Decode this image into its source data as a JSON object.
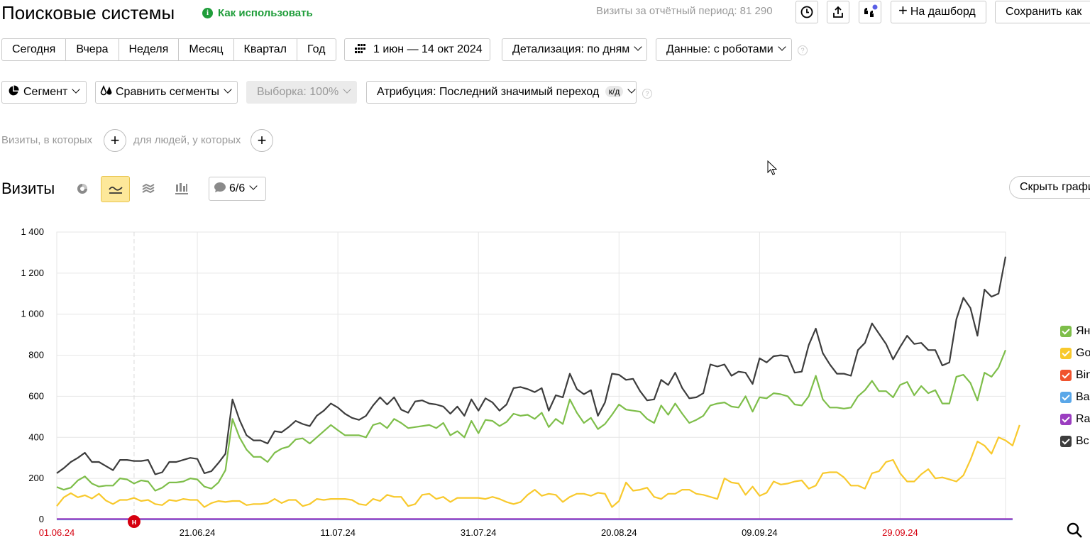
{
  "header": {
    "title": "Поисковые системы",
    "help_link": "Как использовать",
    "period_visits": "Визиты за отчётный период: 81 290",
    "dashboard_label": "На дашборд",
    "save_label": "Сохранить как"
  },
  "toolbar": {
    "periods": [
      "Сегодня",
      "Вчера",
      "Неделя",
      "Месяц",
      "Квартал",
      "Год"
    ],
    "date_range": "1 июн — 14 окт 2024",
    "detail": "Детализация: по дням",
    "data_mode": "Данные: с роботами"
  },
  "segments": {
    "segment_label": "Сегмент",
    "compare_label": "Сравнить сегменты",
    "sample_label": "Выборка: 100%",
    "attribution_label": "Атрибуция: Последний значимый переход",
    "attribution_badge": "к/д"
  },
  "filters": {
    "visits_label": "Визиты, в которых",
    "people_label": "для людей, у которых"
  },
  "chart_section": {
    "title": "Визиты",
    "series_selector": "6/6",
    "hide_label": "Скрыть графи"
  },
  "colors": {
    "yandex": "#7ebe4a",
    "google": "#f8c92d",
    "bing": "#f0532e",
    "baidu": "#5aa7e8",
    "rambler": "#9b3ec0",
    "total": "#3d3d3d",
    "accent_green": "#1f9d3a",
    "holiday_red": "#d6000f",
    "active_chart_btn": "#fde89a"
  },
  "chart_data": {
    "type": "line",
    "y_ticks": [
      "0",
      "200",
      "400",
      "600",
      "800",
      "1 000",
      "1 200",
      "1 400"
    ],
    "x_ticks": [
      "01.06.24",
      "21.06.24",
      "11.07.24",
      "31.07.24",
      "20.08.24",
      "09.09.24",
      "29.09.24"
    ],
    "x_tick_holiday": [
      true,
      false,
      false,
      false,
      false,
      false,
      true
    ],
    "ylim": [
      0,
      1400
    ],
    "x_start": "2024-06-01",
    "x_end": "2024-10-14",
    "annotation": {
      "date": "2024-06-12",
      "label": "н"
    },
    "grid": true,
    "legend_position": "right",
    "series": [
      {
        "name": "Ян",
        "color_key": "yandex",
        "values": [
          158,
          145,
          155,
          190,
          210,
          175,
          160,
          165,
          165,
          200,
          195,
          175,
          190,
          185,
          140,
          155,
          180,
          180,
          185,
          200,
          195,
          160,
          150,
          180,
          240,
          490,
          400,
          340,
          305,
          305,
          280,
          325,
          345,
          355,
          390,
          395,
          370,
          400,
          430,
          460,
          435,
          410,
          410,
          410,
          400,
          460,
          470,
          445,
          490,
          470,
          445,
          450,
          455,
          460,
          445,
          470,
          410,
          430,
          400,
          480,
          420,
          485,
          480,
          455,
          475,
          515,
          505,
          510,
          490,
          520,
          450,
          490,
          465,
          585,
          520,
          470,
          495,
          440,
          465,
          510,
          560,
          535,
          530,
          525,
          490,
          470,
          555,
          510,
          565,
          515,
          470,
          485,
          505,
          555,
          565,
          570,
          550,
          545,
          600,
          525,
          595,
          590,
          615,
          610,
          600,
          560,
          555,
          600,
          700,
          585,
          545,
          545,
          540,
          545,
          600,
          630,
          675,
          625,
          625,
          595,
          655,
          670,
          605,
          650,
          615,
          630,
          565,
          565,
          695,
          705,
          665,
          580,
          715,
          695,
          740,
          825
        ]
      },
      {
        "name": "Go",
        "color_key": "google",
        "values": [
          65,
          108,
          128,
          108,
          118,
          102,
          125,
          92,
          75,
          95,
          95,
          105,
          90,
          95,
          75,
          70,
          95,
          90,
          100,
          95,
          95,
          60,
          80,
          90,
          85,
          90,
          90,
          70,
          75,
          75,
          80,
          100,
          80,
          95,
          95,
          65,
          75,
          100,
          95,
          100,
          100,
          100,
          95,
          75,
          70,
          100,
          90,
          120,
          110,
          110,
          65,
          75,
          120,
          125,
          100,
          110,
          85,
          105,
          105,
          105,
          105,
          100,
          110,
          100,
          85,
          75,
          85,
          120,
          145,
          115,
          125,
          120,
          85,
          110,
          125,
          125,
          115,
          130,
          125,
          60,
          90,
          180,
          140,
          145,
          155,
          110,
          100,
          125,
          125,
          145,
          145,
          125,
          120,
          110,
          100,
          200,
          180,
          175,
          120,
          160,
          115,
          130,
          185,
          170,
          175,
          185,
          190,
          150,
          165,
          225,
          230,
          230,
          205,
          165,
          165,
          150,
          225,
          235,
          280,
          290,
          225,
          185,
          185,
          220,
          245,
          200,
          205,
          195,
          185,
          215,
          290,
          380,
          360,
          320,
          400,
          385,
          360,
          460
        ]
      },
      {
        "name": "Bin",
        "color_key": "bing",
        "values": [
          1,
          1,
          1,
          1,
          1,
          1,
          1,
          1,
          1,
          1,
          1,
          1,
          1,
          1,
          1,
          1,
          1,
          1,
          1,
          1,
          1,
          1,
          1,
          1,
          1,
          1,
          1,
          1,
          1,
          1,
          1,
          1,
          1,
          1,
          1,
          1,
          1,
          1,
          1,
          1,
          1,
          1,
          1,
          1,
          1,
          1,
          1,
          1,
          1,
          1,
          1,
          1,
          1,
          1,
          1,
          1,
          1,
          1,
          1,
          1,
          1,
          1,
          1,
          1,
          1,
          1,
          1,
          1,
          1,
          1,
          1,
          1,
          1,
          1,
          1,
          1,
          1,
          1,
          1,
          1,
          1,
          1,
          1,
          1,
          1,
          1,
          1,
          1,
          1,
          1,
          1,
          1,
          1,
          1,
          1,
          1,
          1,
          1,
          1,
          1,
          1,
          1,
          1,
          1,
          1,
          1,
          1,
          1,
          1,
          1,
          1,
          1,
          1,
          1,
          1,
          1,
          1,
          1,
          1,
          1,
          1,
          1,
          1,
          1,
          1,
          1,
          1,
          1,
          1,
          1,
          1,
          1,
          1,
          1,
          1,
          1,
          1
        ]
      },
      {
        "name": "Ba",
        "color_key": "baidu",
        "values": [
          0,
          0,
          0,
          0,
          0,
          0,
          0,
          0,
          0,
          0,
          0,
          0,
          0,
          0,
          0,
          0,
          0,
          0,
          0,
          0,
          0,
          0,
          0,
          0,
          0,
          0,
          0,
          0,
          0,
          0,
          0,
          0,
          0,
          0,
          0,
          0,
          0,
          0,
          0,
          0,
          0,
          0,
          0,
          0,
          0,
          0,
          0,
          0,
          0,
          0,
          0,
          0,
          0,
          0,
          0,
          0,
          0,
          0,
          0,
          0,
          0,
          0,
          0,
          0,
          0,
          0,
          0,
          0,
          0,
          0,
          0,
          0,
          0,
          0,
          0,
          0,
          0,
          0,
          0,
          0,
          0,
          0,
          0,
          0,
          0,
          0,
          0,
          0,
          0,
          0,
          0,
          0,
          0,
          0,
          0,
          0,
          0,
          0,
          0,
          0,
          0,
          0,
          0,
          0,
          0,
          0,
          0,
          0,
          0,
          0,
          0,
          0,
          0,
          0,
          0,
          0,
          0,
          0,
          0,
          0,
          0,
          0,
          0,
          0,
          0,
          0,
          0,
          0,
          0,
          0,
          0,
          0,
          0,
          0,
          0,
          0,
          0
        ]
      },
      {
        "name": "Ra",
        "color_key": "rambler",
        "values": [
          2,
          2,
          2,
          2,
          2,
          2,
          2,
          2,
          2,
          2,
          2,
          2,
          2,
          2,
          2,
          2,
          2,
          2,
          2,
          2,
          2,
          2,
          2,
          2,
          2,
          2,
          2,
          2,
          2,
          2,
          2,
          2,
          2,
          2,
          2,
          2,
          2,
          2,
          2,
          2,
          2,
          2,
          2,
          2,
          2,
          2,
          2,
          2,
          2,
          2,
          2,
          2,
          2,
          2,
          2,
          2,
          2,
          2,
          2,
          2,
          2,
          2,
          2,
          2,
          2,
          2,
          2,
          2,
          2,
          2,
          2,
          2,
          2,
          2,
          2,
          2,
          2,
          2,
          2,
          2,
          2,
          2,
          2,
          2,
          2,
          2,
          2,
          2,
          2,
          2,
          2,
          2,
          2,
          2,
          2,
          2,
          2,
          2,
          2,
          2,
          2,
          2,
          2,
          2,
          2,
          2,
          2,
          2,
          2,
          2,
          2,
          2,
          2,
          2,
          2,
          2,
          2,
          2,
          2,
          2,
          2,
          2,
          2,
          2,
          2,
          2,
          2,
          2,
          2,
          2,
          2,
          2,
          2,
          2,
          2,
          2,
          2
        ]
      },
      {
        "name": "Вс",
        "color_key": "total",
        "values": [
          225,
          250,
          280,
          300,
          325,
          280,
          280,
          260,
          240,
          290,
          290,
          285,
          285,
          290,
          220,
          230,
          280,
          280,
          290,
          300,
          295,
          225,
          235,
          275,
          320,
          585,
          485,
          410,
          385,
          385,
          370,
          430,
          425,
          450,
          480,
          465,
          455,
          505,
          530,
          565,
          545,
          515,
          495,
          485,
          505,
          555,
          595,
          560,
          595,
          535,
          520,
          575,
          580,
          565,
          560,
          550,
          515,
          550,
          505,
          585,
          530,
          590,
          570,
          530,
          560,
          640,
          645,
          635,
          620,
          640,
          530,
          605,
          595,
          710,
          635,
          610,
          630,
          505,
          570,
          710,
          705,
          680,
          685,
          625,
          580,
          585,
          680,
          655,
          715,
          640,
          590,
          595,
          615,
          755,
          745,
          755,
          700,
          720,
          715,
          660,
          785,
          765,
          795,
          800,
          795,
          715,
          720,
          850,
          930,
          810,
          755,
          710,
          710,
          700,
          825,
          860,
          955,
          905,
          855,
          780,
          840,
          895,
          855,
          860,
          825,
          825,
          750,
          765,
          975,
          1080,
          1030,
          895,
          1120,
          1085,
          1100,
          1280
        ]
      }
    ]
  }
}
